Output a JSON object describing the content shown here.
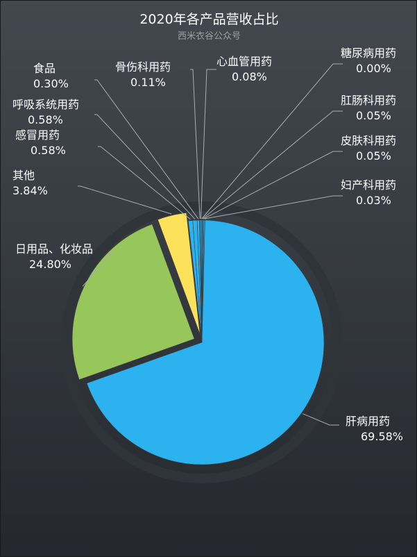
{
  "chart_data": {
    "type": "pie",
    "title": "2020年各产品营收占比",
    "subtitle": "西米衣谷公众号",
    "slices": [
      {
        "label": "肝病用药",
        "value": 69.58,
        "value_label": "69.58%",
        "color": "#2db2f0"
      },
      {
        "label": "日用品、化妆品",
        "value": 24.8,
        "value_label": "24.80%",
        "color": "#97c65a"
      },
      {
        "label": "其他",
        "value": 3.84,
        "value_label": "3.84%",
        "color": "#fbe25a"
      },
      {
        "label": "感冒用药",
        "value": 0.58,
        "value_label": "0.58%",
        "color": "#2db2f0"
      },
      {
        "label": "呼吸系统用药",
        "value": 0.58,
        "value_label": "0.58%",
        "color": "#2db2f0"
      },
      {
        "label": "食品",
        "value": 0.3,
        "value_label": "0.30%",
        "color": "#2db2f0"
      },
      {
        "label": "骨伤科用药",
        "value": 0.11,
        "value_label": "0.11%",
        "color": "#2db2f0"
      },
      {
        "label": "心血管用药",
        "value": 0.08,
        "value_label": "0.08%",
        "color": "#2db2f0"
      },
      {
        "label": "糖尿病用药",
        "value": 0.0,
        "value_label": "0.00%",
        "color": "#2db2f0"
      },
      {
        "label": "肛肠科用药",
        "value": 0.05,
        "value_label": "0.05%",
        "color": "#2db2f0"
      },
      {
        "label": "皮肤科用药",
        "value": 0.05,
        "value_label": "0.05%",
        "color": "#2db2f0"
      },
      {
        "label": "妇产科用药",
        "value": 0.03,
        "value_label": "0.03%",
        "color": "#2db2f0"
      }
    ]
  }
}
